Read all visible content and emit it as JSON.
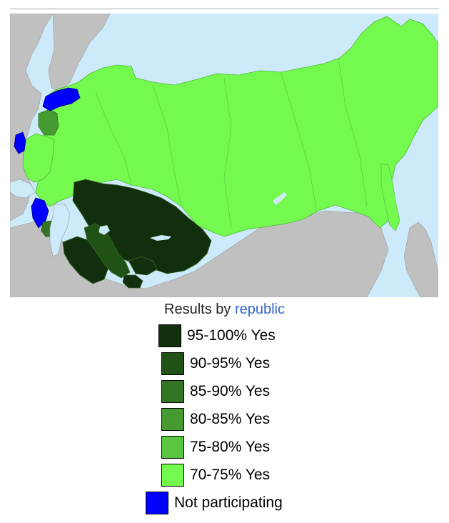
{
  "colors": {
    "sea": "#cdeafa",
    "other_land": "#c0c0c0",
    "borders": "#9a9a9a",
    "c95_100": "#112e0d",
    "c90_95": "#1f5214",
    "c85_90": "#347524",
    "c80_85": "#459b30",
    "c75_80": "#5ac63f",
    "c70_75": "#74f94f",
    "not_participating": "#0000ff"
  },
  "caption": {
    "prefix": "Results by ",
    "link": "republic"
  },
  "legend": [
    {
      "label": "95-100% Yes",
      "color": "#112e0d"
    },
    {
      "label": "90-95% Yes",
      "color": "#1f5214"
    },
    {
      "label": "85-90% Yes",
      "color": "#347524"
    },
    {
      "label": "80-85% Yes",
      "color": "#459b30"
    },
    {
      "label": "75-80% Yes",
      "color": "#5ac63f"
    },
    {
      "label": "70-75% Yes",
      "color": "#74f94f"
    },
    {
      "label": "Not participating",
      "color": "#0000ff"
    }
  ]
}
